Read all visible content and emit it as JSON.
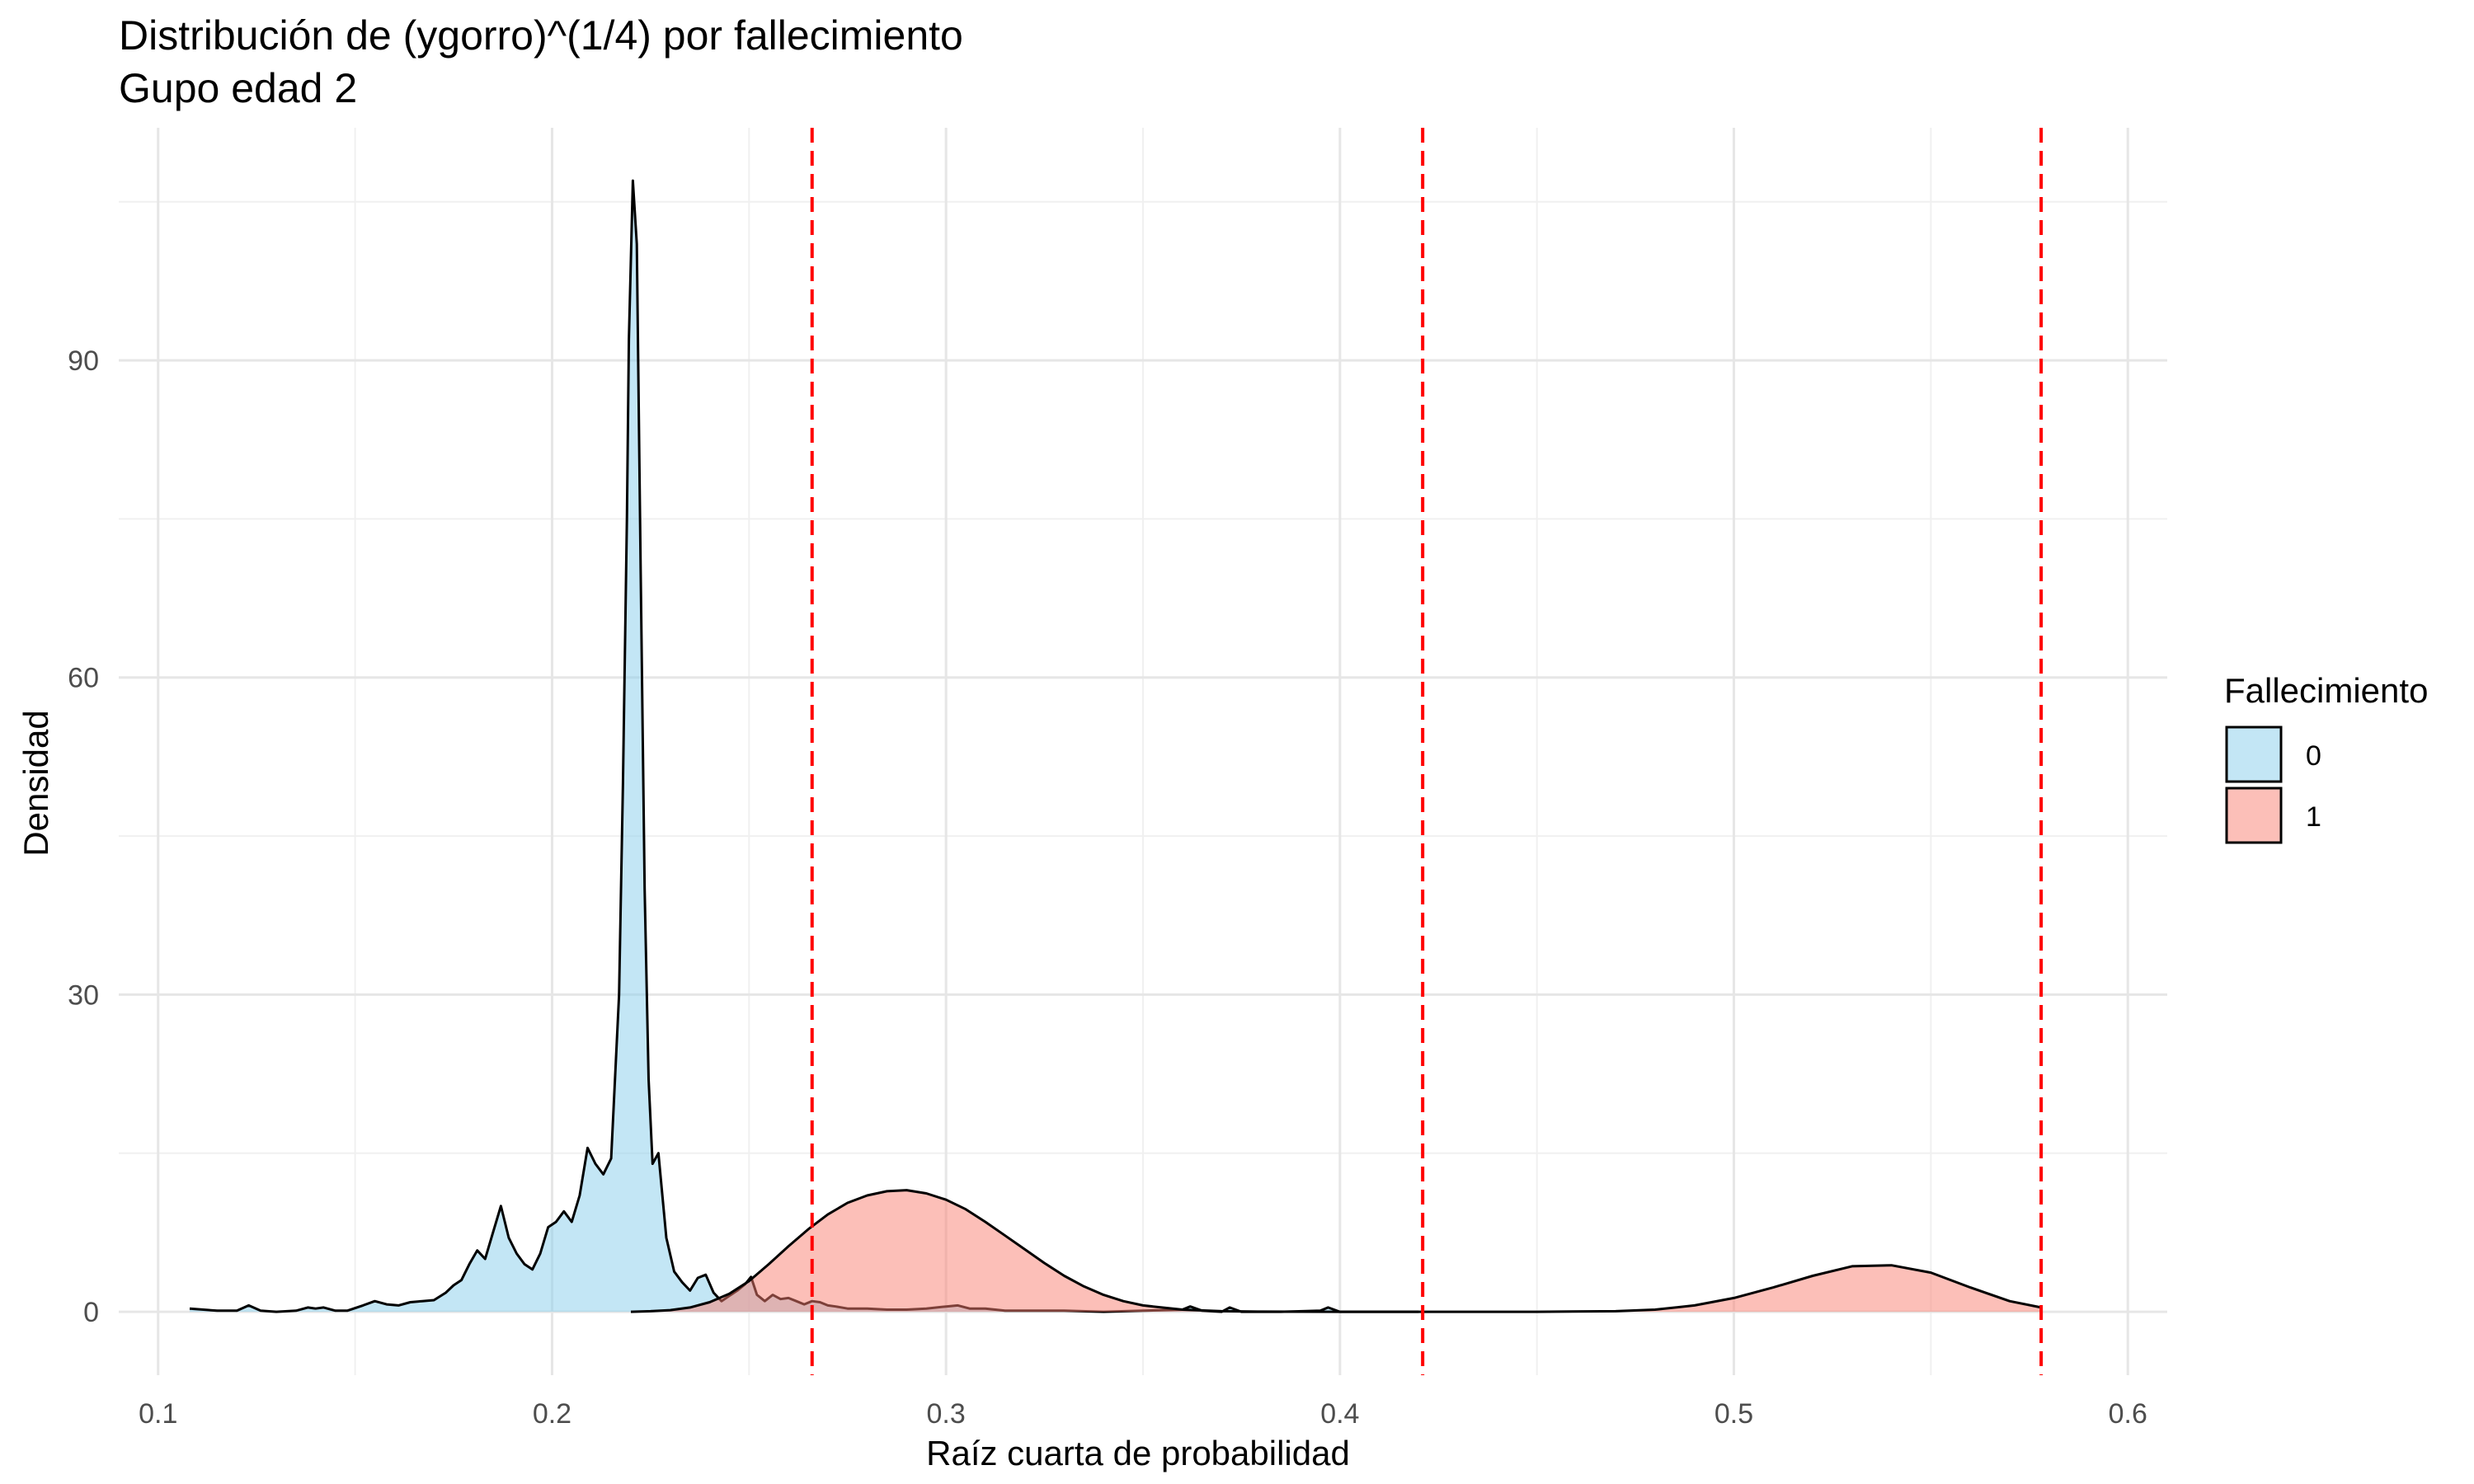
{
  "chart_data": {
    "type": "area",
    "title": "Distribución de (ygorro)^(1/4) por fallecimiento",
    "subtitle": "Gupo edad 2",
    "xlabel": "Raíz cuarta de probabilidad",
    "ylabel": "Densidad",
    "xlim": [
      0.09,
      0.61
    ],
    "ylim": [
      -6,
      112
    ],
    "x_ticks": [
      0.1,
      0.2,
      0.3,
      0.4,
      0.5,
      0.6
    ],
    "x_tick_labels": [
      "0.1",
      "0.2",
      "0.3",
      "0.4",
      "0.5",
      "0.6"
    ],
    "y_ticks": [
      0,
      30,
      60,
      90
    ],
    "y_tick_labels": [
      "0",
      "30",
      "60",
      "90"
    ],
    "grid": true,
    "legend": {
      "title": "Fallecimiento",
      "position": "right",
      "entries": [
        "0",
        "1"
      ]
    },
    "vlines": {
      "x": [
        0.266,
        0.421,
        0.578
      ],
      "color": "#ff0000",
      "style": "dashed"
    },
    "series": [
      {
        "name": "0",
        "fill": "#87ceeb",
        "fill_opacity": 0.5,
        "x": [
          0.108,
          0.115,
          0.12,
          0.123,
          0.126,
          0.13,
          0.135,
          0.138,
          0.14,
          0.142,
          0.145,
          0.148,
          0.152,
          0.155,
          0.158,
          0.161,
          0.164,
          0.167,
          0.17,
          0.173,
          0.175,
          0.177,
          0.179,
          0.181,
          0.183,
          0.185,
          0.187,
          0.189,
          0.191,
          0.193,
          0.195,
          0.197,
          0.199,
          0.201,
          0.203,
          0.205,
          0.207,
          0.209,
          0.211,
          0.213,
          0.215,
          0.217,
          0.218,
          0.219,
          0.2195,
          0.2205,
          0.2215,
          0.2225,
          0.2235,
          0.2245,
          0.2255,
          0.227,
          0.228,
          0.229,
          0.231,
          0.233,
          0.235,
          0.237,
          0.239,
          0.241,
          0.243,
          0.245,
          0.247,
          0.249,
          0.2505,
          0.252,
          0.254,
          0.256,
          0.258,
          0.26,
          0.262,
          0.264,
          0.266,
          0.268,
          0.27,
          0.272,
          0.275,
          0.28,
          0.285,
          0.29,
          0.295,
          0.3,
          0.303,
          0.306,
          0.31,
          0.315,
          0.32,
          0.325,
          0.33,
          0.34,
          0.35,
          0.36,
          0.362,
          0.365,
          0.37,
          0.372,
          0.375,
          0.385,
          0.395,
          0.397,
          0.4,
          0.41,
          0.42
        ],
        "values": [
          0.3,
          0.1,
          0.1,
          0.6,
          0.1,
          0.0,
          0.1,
          0.4,
          0.3,
          0.4,
          0.1,
          0.1,
          0.6,
          1.0,
          0.7,
          0.6,
          0.9,
          1.0,
          1.1,
          1.8,
          2.5,
          3.0,
          4.5,
          5.8,
          5.0,
          7.5,
          10.0,
          7.0,
          5.5,
          4.5,
          4.0,
          5.5,
          8.0,
          8.5,
          9.5,
          8.5,
          11.0,
          15.5,
          14.0,
          13.0,
          14.5,
          30.0,
          50.0,
          75.0,
          92.0,
          107.0,
          101.0,
          70.0,
          40.0,
          22.0,
          14.0,
          15.0,
          11.0,
          7.0,
          3.8,
          2.8,
          2.0,
          3.2,
          3.5,
          1.8,
          1.0,
          1.5,
          2.0,
          2.6,
          3.3,
          1.6,
          1.0,
          1.6,
          1.2,
          1.3,
          1.0,
          0.7,
          1.0,
          0.9,
          0.6,
          0.5,
          0.3,
          0.3,
          0.2,
          0.2,
          0.3,
          0.5,
          0.6,
          0.3,
          0.3,
          0.1,
          0.1,
          0.1,
          0.1,
          0.0,
          0.1,
          0.2,
          0.5,
          0.1,
          0.0,
          0.4,
          0.0,
          0.0,
          0.1,
          0.4,
          0.0,
          0.0,
          0.0
        ]
      },
      {
        "name": "1",
        "fill": "#fa8072",
        "fill_opacity": 0.5,
        "x": [
          0.22,
          0.225,
          0.23,
          0.235,
          0.24,
          0.245,
          0.25,
          0.255,
          0.26,
          0.265,
          0.27,
          0.275,
          0.28,
          0.285,
          0.29,
          0.295,
          0.3,
          0.305,
          0.31,
          0.315,
          0.32,
          0.325,
          0.33,
          0.335,
          0.34,
          0.345,
          0.35,
          0.36,
          0.37,
          0.38,
          0.4,
          0.45,
          0.47,
          0.48,
          0.49,
          0.5,
          0.51,
          0.52,
          0.53,
          0.54,
          0.55,
          0.56,
          0.57,
          0.578
        ],
        "values": [
          0.0,
          0.05,
          0.15,
          0.4,
          0.9,
          1.7,
          2.9,
          4.5,
          6.2,
          7.8,
          9.2,
          10.3,
          11.0,
          11.4,
          11.5,
          11.2,
          10.6,
          9.7,
          8.5,
          7.2,
          5.9,
          4.6,
          3.4,
          2.4,
          1.6,
          1.0,
          0.6,
          0.2,
          0.05,
          0.01,
          0.0,
          0.0,
          0.05,
          0.2,
          0.6,
          1.3,
          2.3,
          3.4,
          4.3,
          4.4,
          3.7,
          2.3,
          1.0,
          0.4
        ]
      }
    ]
  }
}
